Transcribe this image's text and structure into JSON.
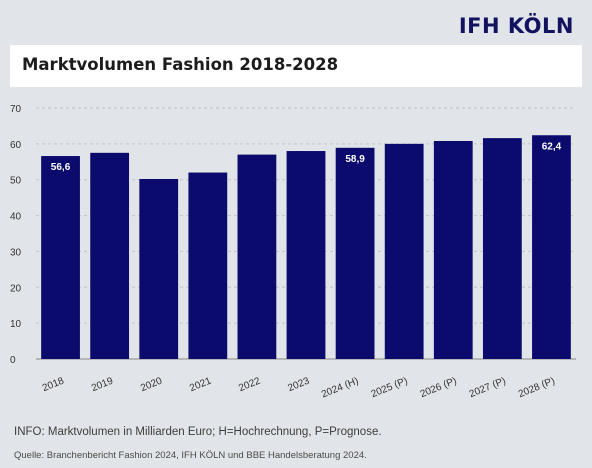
{
  "brand": "IFH KÖLN",
  "title": "Marktvolumen Fashion 2018-2028",
  "info": "INFO: Marktvolumen in Milliarden Euro; H=Hochrechnung, P=Prognose.",
  "source": "Quelle: Branchenbericht Fashion 2024, IFH KÖLN und BBE Handelsberatung 2024.",
  "colors": {
    "bar": "#0b0b6e",
    "brand": "#12125f",
    "background": "#e1e4e8"
  },
  "chart_data": {
    "type": "bar",
    "title": "Marktvolumen Fashion 2018-2028",
    "xlabel": "",
    "ylabel": "",
    "categories": [
      "2018",
      "2019",
      "2020",
      "2021",
      "2022",
      "2023",
      "2024 (H)",
      "2025 (P)",
      "2026 (P)",
      "2027 (P)",
      "2028 (P)"
    ],
    "values": [
      56.6,
      57.5,
      50.2,
      52.0,
      57.0,
      58.0,
      58.9,
      60.0,
      60.8,
      61.6,
      62.4
    ],
    "data_labels": [
      "56,6",
      "",
      "",
      "",
      "",
      "",
      "58,9",
      "",
      "",
      "",
      "62,4"
    ],
    "ylim": [
      0,
      70
    ],
    "yticks": [
      0,
      10,
      20,
      30,
      40,
      50,
      60,
      70
    ],
    "grid": "horizontal dashed"
  }
}
